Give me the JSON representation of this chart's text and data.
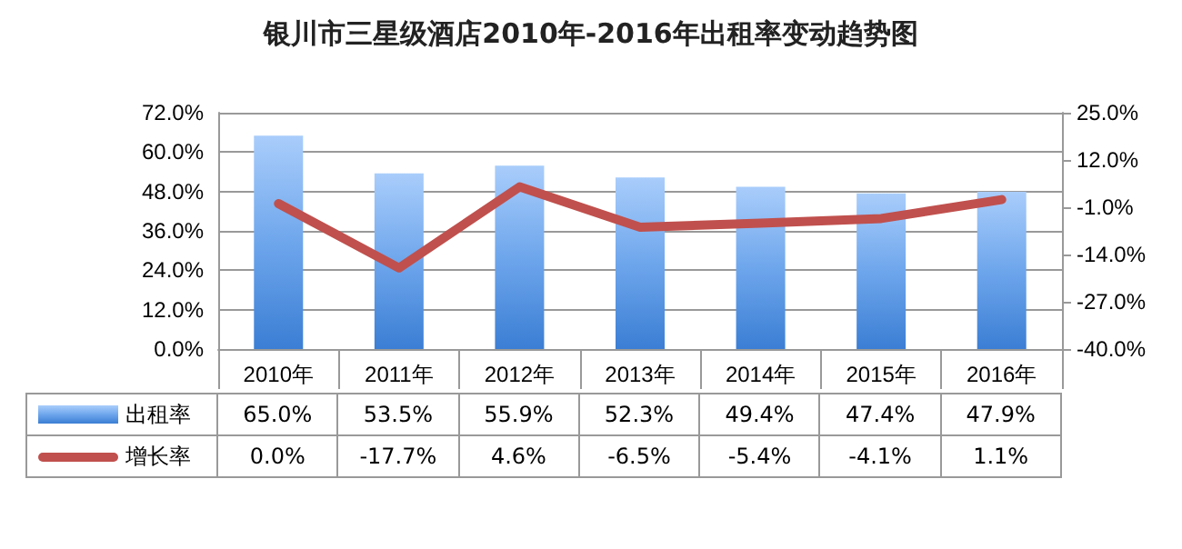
{
  "chart_data": {
    "type": "bar",
    "title": "银川市三星级酒店2010年-2016年出租率变动趋势图",
    "categories": [
      "2010年",
      "2011年",
      "2012年",
      "2013年",
      "2014年",
      "2015年",
      "2016年"
    ],
    "series": [
      {
        "name": "出租率",
        "color": "#6ea6ec",
        "values": [
          65.0,
          53.5,
          55.9,
          52.3,
          49.4,
          47.4,
          47.9
        ]
      },
      {
        "name": "增长率",
        "type": "line",
        "axis": "y2",
        "color": "#c0504d",
        "values": [
          0.0,
          -17.7,
          4.6,
          -6.5,
          -5.4,
          -4.1,
          1.1
        ]
      }
    ],
    "ylim": [
      0,
      72
    ],
    "yticks": [
      {
        "value": 0,
        "label": "0.0%"
      },
      {
        "value": 12,
        "label": "12.0%"
      },
      {
        "value": 24,
        "label": "24.0%"
      },
      {
        "value": 36,
        "label": "36.0%"
      },
      {
        "value": 48,
        "label": "48.0%"
      },
      {
        "value": 60,
        "label": "60.0%"
      },
      {
        "value": 72,
        "label": "72.0%"
      }
    ],
    "y2lim": [
      -40,
      25
    ],
    "y2ticks": [
      {
        "value": -40,
        "label": "-40.0%"
      },
      {
        "value": -27,
        "label": "-27.0%"
      },
      {
        "value": -14,
        "label": "-14.0%"
      },
      {
        "value": -1,
        "label": "-1.0%"
      },
      {
        "value": 12,
        "label": "12.0%"
      },
      {
        "value": 25,
        "label": "25.0%"
      }
    ],
    "value_labels": [
      [
        "65.0%",
        "53.5%",
        "55.9%",
        "52.3%",
        "49.4%",
        "47.4%",
        "47.9%"
      ],
      [
        "0.0%",
        "-17.7%",
        "4.6%",
        "-6.5%",
        "-5.4%",
        "-4.1%",
        "1.1%"
      ]
    ],
    "grid": "y",
    "legend": "bottom left",
    "marker": "none",
    "line_style": "solid"
  }
}
